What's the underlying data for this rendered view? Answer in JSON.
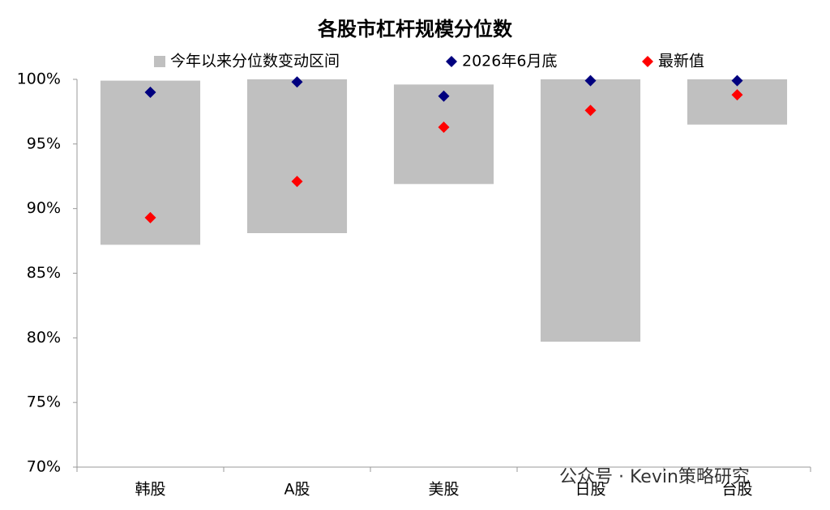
{
  "chart_data": {
    "type": "range-scatter",
    "title": "各股市杠杆规模分位数",
    "categories": [
      "韩股",
      "A股",
      "美股",
      "日股",
      "台股"
    ],
    "series": [
      {
        "name": "今年以来分位数变动区间",
        "type": "range",
        "color": "#c0c0c0",
        "low": [
          87.2,
          88.1,
          91.9,
          79.7,
          96.5
        ],
        "high": [
          99.9,
          100,
          99.6,
          100,
          100
        ]
      },
      {
        "name": "2026年6月底",
        "type": "scatter",
        "color": "#00007f",
        "values": [
          99.0,
          99.8,
          98.7,
          99.9,
          99.9
        ]
      },
      {
        "name": "最新值",
        "type": "scatter",
        "color": "#ff0000",
        "values": [
          89.3,
          92.1,
          96.3,
          97.6,
          98.8
        ]
      }
    ],
    "ylim": [
      70,
      100
    ],
    "yticks": [
      {
        "value": 70,
        "label": "70%"
      },
      {
        "value": 75,
        "label": "75%"
      },
      {
        "value": 80,
        "label": "80%"
      },
      {
        "value": 85,
        "label": "85%"
      },
      {
        "value": 90,
        "label": "90%"
      },
      {
        "value": 95,
        "label": "95%"
      },
      {
        "value": 100,
        "label": "100%"
      }
    ],
    "watermark": "公众号 · Kevin策略研究"
  }
}
